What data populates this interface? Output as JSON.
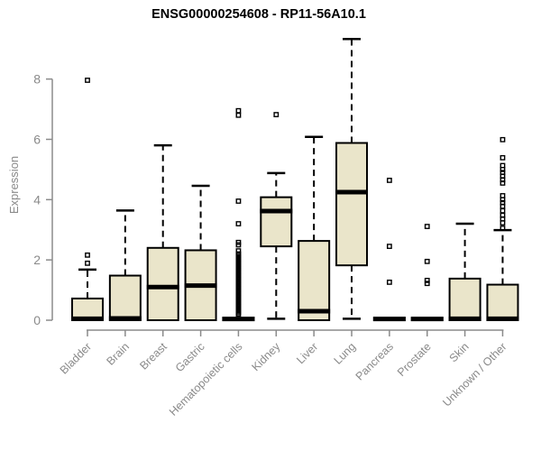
{
  "colors": {
    "background": "#FFFFFF",
    "box_fill": "#EAE5CA",
    "box_stroke": "#000000",
    "median": "#000000",
    "whisker": "#000000",
    "axis": "#8B8B8B",
    "tick_label": "#8A8A8A",
    "title": "#000000"
  },
  "chart_data": {
    "type": "boxplot",
    "title": "ENSG00000254608 - RP11-56A10.1",
    "xlabel": "",
    "ylabel": "Expression",
    "ylim": [
      0,
      9.4
    ],
    "yticks": [
      0,
      2,
      4,
      6,
      8
    ],
    "grid": false,
    "legend": false,
    "categories": [
      "Bladder",
      "Brain",
      "Breast",
      "Gastric",
      "Hematopoietic cells",
      "Kidney",
      "Liver",
      "Lung",
      "Pancreas",
      "Prostate",
      "Skin",
      "Unknown / Other"
    ],
    "boxes": [
      {
        "label": "Bladder",
        "q1": 0,
        "median": 0.05,
        "q3": 0.72,
        "whisker_low": 0,
        "whisker_high": 1.68,
        "outliers": [
          1.89,
          2.16,
          7.96
        ]
      },
      {
        "label": "Brain",
        "q1": 0,
        "median": 0.06,
        "q3": 1.48,
        "whisker_low": 0,
        "whisker_high": 3.64,
        "outliers": []
      },
      {
        "label": "Breast",
        "q1": 0,
        "median": 1.1,
        "q3": 2.4,
        "whisker_low": 0,
        "whisker_high": 5.8,
        "outliers": []
      },
      {
        "label": "Gastric",
        "q1": 0,
        "median": 1.15,
        "q3": 2.32,
        "whisker_low": 0,
        "whisker_high": 4.46,
        "outliers": []
      },
      {
        "label": "Hematopoietic cells",
        "q1": 0,
        "median": 0.04,
        "q3": 0.08,
        "whisker_low": 0,
        "whisker_high": 0.08,
        "outliers": [
          0.2,
          0.25,
          0.3,
          0.35,
          0.4,
          0.45,
          0.5,
          0.55,
          0.6,
          0.65,
          0.7,
          0.75,
          0.8,
          0.85,
          0.9,
          0.95,
          1.0,
          1.05,
          1.1,
          1.15,
          1.2,
          1.25,
          1.3,
          1.35,
          1.4,
          1.45,
          1.5,
          1.55,
          1.6,
          1.65,
          1.7,
          1.75,
          1.8,
          1.85,
          1.9,
          1.95,
          2.0,
          2.05,
          2.1,
          2.15,
          2.2,
          2.3,
          2.5,
          2.58,
          3.2,
          3.95,
          6.8,
          6.95
        ]
      },
      {
        "label": "Kidney",
        "q1": 2.45,
        "median": 3.62,
        "q3": 4.08,
        "whisker_low": 0.05,
        "whisker_high": 4.88,
        "outliers": [
          6.82
        ]
      },
      {
        "label": "Liver",
        "q1": 0,
        "median": 0.3,
        "q3": 2.63,
        "whisker_low": 0,
        "whisker_high": 6.08,
        "outliers": []
      },
      {
        "label": "Lung",
        "q1": 1.82,
        "median": 4.25,
        "q3": 5.88,
        "whisker_low": 0.05,
        "whisker_high": 9.33,
        "outliers": []
      },
      {
        "label": "Pancreas",
        "q1": 0,
        "median": 0.04,
        "q3": 0.08,
        "whisker_low": 0,
        "whisker_high": 0.08,
        "outliers": [
          1.26,
          2.45,
          4.64
        ]
      },
      {
        "label": "Prostate",
        "q1": 0,
        "median": 0.04,
        "q3": 0.08,
        "whisker_low": 0,
        "whisker_high": 0.08,
        "outliers": [
          1.22,
          1.32,
          1.95,
          3.11
        ]
      },
      {
        "label": "Skin",
        "q1": 0,
        "median": 0.05,
        "q3": 1.38,
        "whisker_low": 0,
        "whisker_high": 3.2,
        "outliers": []
      },
      {
        "label": "Unknown / Other",
        "q1": 0,
        "median": 0.05,
        "q3": 1.18,
        "whisker_low": 0,
        "whisker_high": 2.99,
        "outliers": [
          3.05,
          3.23,
          3.36,
          3.48,
          3.63,
          3.78,
          3.9,
          4.0,
          4.13,
          4.55,
          4.66,
          4.78,
          4.9,
          5.0,
          5.13,
          5.39,
          5.99
        ]
      }
    ]
  }
}
